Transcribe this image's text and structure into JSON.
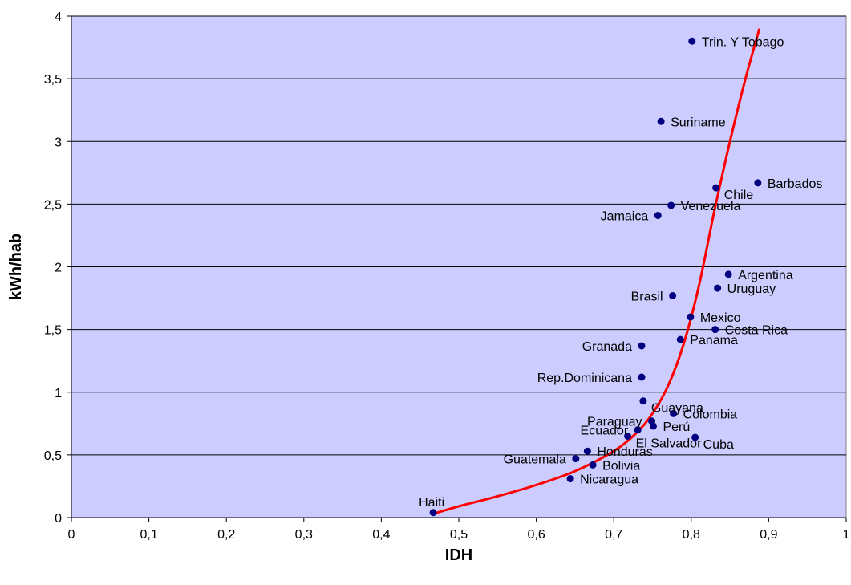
{
  "chart_data": {
    "type": "scatter",
    "xlabel": "IDH",
    "ylabel": "kWh/hab",
    "xlim": [
      0,
      1
    ],
    "ylim": [
      0,
      4
    ],
    "x_ticks": [
      0,
      0.1,
      0.2,
      0.3,
      0.4,
      0.5,
      0.6,
      0.7,
      0.8,
      0.9,
      1
    ],
    "x_tick_labels": [
      "0",
      "0,1",
      "0,2",
      "0,3",
      "0,4",
      "0,5",
      "0,6",
      "0,7",
      "0,8",
      "0,9",
      "1"
    ],
    "y_ticks": [
      0,
      0.5,
      1,
      1.5,
      2,
      2.5,
      3,
      3.5,
      4
    ],
    "y_tick_labels": [
      "0",
      "0,5",
      "1",
      "1,5",
      "2",
      "2,5",
      "3",
      "3,5",
      "4"
    ],
    "grid": "horizontal",
    "colors": {
      "plot_background": "#ccccff",
      "points": "#000080",
      "trend": "#ff0000",
      "grid": "#000000"
    },
    "points": [
      {
        "label": "Trin. Y Tobago",
        "x": 0.801,
        "y": 3.8,
        "label_side": "right"
      },
      {
        "label": "Suriname",
        "x": 0.761,
        "y": 3.16,
        "label_side": "right"
      },
      {
        "label": "Barbados",
        "x": 0.886,
        "y": 2.67,
        "label_side": "right"
      },
      {
        "label": "Chile",
        "x": 0.832,
        "y": 2.63,
        "label_side": "right-below"
      },
      {
        "label": "Venezuela",
        "x": 0.774,
        "y": 2.49,
        "label_side": "right"
      },
      {
        "label": "Jamaica",
        "x": 0.757,
        "y": 2.41,
        "label_side": "left"
      },
      {
        "label": "Argentina",
        "x": 0.848,
        "y": 1.94,
        "label_side": "right"
      },
      {
        "label": "Uruguay",
        "x": 0.834,
        "y": 1.83,
        "label_side": "right"
      },
      {
        "label": "Brasil",
        "x": 0.776,
        "y": 1.77,
        "label_side": "left"
      },
      {
        "label": "Mexico",
        "x": 0.799,
        "y": 1.6,
        "label_side": "right"
      },
      {
        "label": "Costa Rica",
        "x": 0.831,
        "y": 1.5,
        "label_side": "right"
      },
      {
        "label": "Panama",
        "x": 0.786,
        "y": 1.42,
        "label_side": "right"
      },
      {
        "label": "Granada",
        "x": 0.736,
        "y": 1.37,
        "label_side": "left"
      },
      {
        "label": "Rep.Dominicana",
        "x": 0.736,
        "y": 1.12,
        "label_side": "left"
      },
      {
        "label": "Guayana",
        "x": 0.738,
        "y": 0.93,
        "label_side": "right-below"
      },
      {
        "label": "Colombia",
        "x": 0.777,
        "y": 0.83,
        "label_side": "right"
      },
      {
        "label": "Paraguay",
        "x": 0.749,
        "y": 0.77,
        "label_side": "left"
      },
      {
        "label": "Perú",
        "x": 0.751,
        "y": 0.73,
        "label_side": "right"
      },
      {
        "label": "Ecuador",
        "x": 0.731,
        "y": 0.7,
        "label_side": "left"
      },
      {
        "label": "El Salvador",
        "x": 0.718,
        "y": 0.65,
        "label_side": "right-below"
      },
      {
        "label": "Cuba",
        "x": 0.805,
        "y": 0.64,
        "label_side": "right-below"
      },
      {
        "label": "Honduras",
        "x": 0.666,
        "y": 0.53,
        "label_side": "right"
      },
      {
        "label": "Guatemala",
        "x": 0.651,
        "y": 0.47,
        "label_side": "left"
      },
      {
        "label": "Bolivia",
        "x": 0.673,
        "y": 0.42,
        "label_side": "right"
      },
      {
        "label": "Nicaragua",
        "x": 0.644,
        "y": 0.31,
        "label_side": "right"
      },
      {
        "label": "Haiti",
        "x": 0.467,
        "y": 0.04,
        "label_side": "above"
      }
    ],
    "trendline": {
      "x": [
        0.467,
        0.5,
        0.55,
        0.6,
        0.65,
        0.7,
        0.73,
        0.75,
        0.77,
        0.79,
        0.81,
        0.83,
        0.85,
        0.87,
        0.888
      ],
      "y": [
        0.03,
        0.09,
        0.17,
        0.26,
        0.37,
        0.53,
        0.68,
        0.83,
        1.05,
        1.38,
        1.85,
        2.45,
        3.0,
        3.5,
        3.9
      ]
    }
  }
}
